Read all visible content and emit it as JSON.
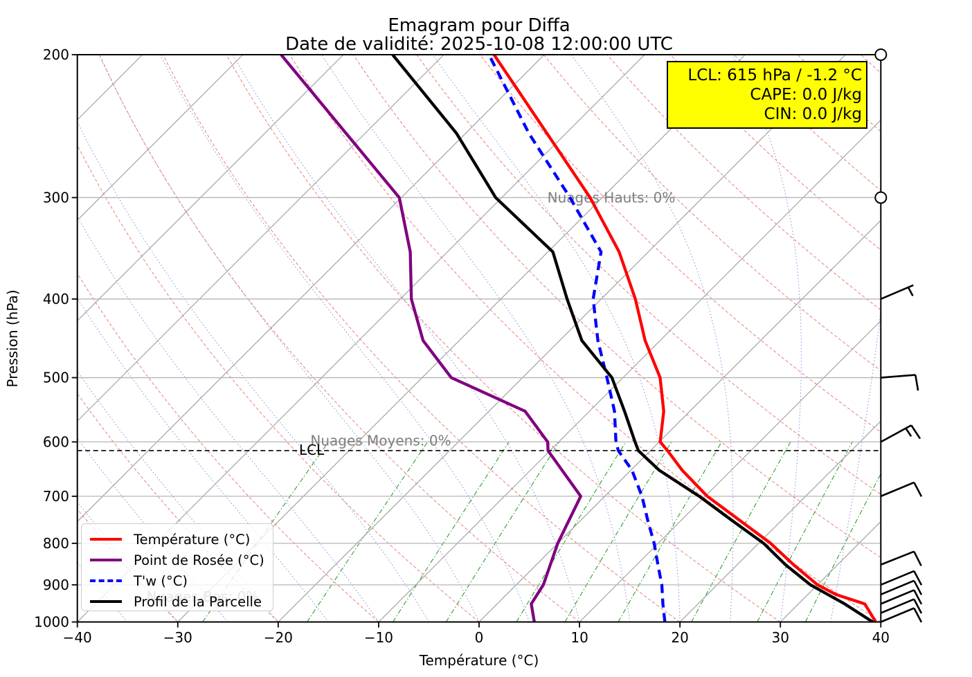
{
  "title": "Emagram pour Diffa",
  "subtitle": "Date de validité: 2025-10-08 12:00:00 UTC",
  "info_box": {
    "lcl_line": "LCL: 615 hPa / -1.2 °C",
    "cape_line": "CAPE: 0.0 J/kg",
    "cin_line": "CIN: 0.0 J/kg",
    "bg_color": "#ffff00"
  },
  "axes": {
    "xlabel": "Température (°C)",
    "ylabel": "Pression (hPa)",
    "x_tick_values": [
      -40,
      -30,
      -20,
      -10,
      0,
      10,
      20,
      30,
      40
    ],
    "y_tick_values": [
      200,
      300,
      400,
      500,
      600,
      700,
      800,
      900,
      1000
    ],
    "xlim": [
      -40,
      40
    ],
    "pressure_lim": [
      1000,
      200
    ],
    "y_scale": "log",
    "skew_deg": 45
  },
  "annotations": {
    "clouds_high": {
      "text": "Nuages Hauts: 0%",
      "pressure": 300
    },
    "clouds_mid": {
      "text": "Nuages Moyens: 0%",
      "pressure": 600
    },
    "clouds_low": {
      "text": "Nuages Bas: 0%",
      "pressure": 930
    },
    "lcl_label": "LCL",
    "lcl_pressure": 615
  },
  "legend": [
    {
      "label": "Température (°C)",
      "color": "#ff0000",
      "dash": "solid"
    },
    {
      "label": "Point de Rosée (°C)",
      "color": "#800080",
      "dash": "solid"
    },
    {
      "label": "T'w (°C)",
      "color": "#0000ff",
      "dash": "dashed"
    },
    {
      "label": "Profil de la Parcelle",
      "color": "#000000",
      "dash": "solid"
    }
  ],
  "chart_data": {
    "type": "line",
    "title": "Emagram pour Diffa",
    "xlabel": "Température (°C)",
    "ylabel": "Pression (hPa)",
    "xlim": [
      -40,
      40
    ],
    "pressure_levels_hpa": "log scale 1000 to 200",
    "series": [
      {
        "name": "Température (°C)",
        "color": "#ff0000",
        "style": "solid",
        "points": [
          [
            1000,
            39.5
          ],
          [
            950,
            36.6
          ],
          [
            925,
            32.8
          ],
          [
            900,
            30.0
          ],
          [
            850,
            25.6
          ],
          [
            800,
            21.2
          ],
          [
            700,
            10.2
          ],
          [
            650,
            5.1
          ],
          [
            615,
            1.7
          ],
          [
            600,
            0.1
          ],
          [
            550,
            -2.6
          ],
          [
            500,
            -6.3
          ],
          [
            450,
            -11.5
          ],
          [
            400,
            -16.6
          ],
          [
            350,
            -22.9
          ],
          [
            300,
            -31.2
          ],
          [
            250,
            -41.9
          ],
          [
            200,
            -55.0
          ]
        ]
      },
      {
        "name": "Point de Rosée (°C)",
        "color": "#800080",
        "style": "solid",
        "points": [
          [
            1000,
            5.5
          ],
          [
            950,
            3.4
          ],
          [
            900,
            2.7
          ],
          [
            800,
            0.0
          ],
          [
            700,
            -2.4
          ],
          [
            615,
            -10.2
          ],
          [
            600,
            -11.1
          ],
          [
            550,
            -16.4
          ],
          [
            500,
            -27.1
          ],
          [
            450,
            -33.6
          ],
          [
            400,
            -38.9
          ],
          [
            350,
            -43.7
          ],
          [
            300,
            -50.2
          ],
          [
            250,
            -61.9
          ],
          [
            200,
            -76.2
          ]
        ]
      },
      {
        "name": "T'w (°C)",
        "color": "#0000ff",
        "style": "dashed",
        "points": [
          [
            1000,
            18.5
          ],
          [
            950,
            16.5
          ],
          [
            900,
            14.5
          ],
          [
            850,
            12.1
          ],
          [
            800,
            9.6
          ],
          [
            750,
            6.7
          ],
          [
            700,
            3.7
          ],
          [
            650,
            0.1
          ],
          [
            615,
            -3.2
          ],
          [
            600,
            -4.3
          ],
          [
            550,
            -7.5
          ],
          [
            500,
            -11.6
          ],
          [
            450,
            -16.2
          ],
          [
            400,
            -20.8
          ],
          [
            350,
            -24.7
          ],
          [
            300,
            -33.2
          ],
          [
            250,
            -43.7
          ],
          [
            200,
            -55.5
          ]
        ]
      },
      {
        "name": "Profil de la Parcelle",
        "color": "#000000",
        "style": "solid",
        "points": [
          [
            1000,
            39.2
          ],
          [
            950,
            34.6
          ],
          [
            900,
            29.3
          ],
          [
            850,
            24.8
          ],
          [
            800,
            20.5
          ],
          [
            750,
            15.1
          ],
          [
            700,
            9.4
          ],
          [
            650,
            2.8
          ],
          [
            615,
            -1.2
          ],
          [
            600,
            -2.4
          ],
          [
            550,
            -6.5
          ],
          [
            500,
            -11.1
          ],
          [
            450,
            -17.8
          ],
          [
            400,
            -23.4
          ],
          [
            350,
            -29.5
          ],
          [
            300,
            -40.6
          ],
          [
            250,
            -50.9
          ],
          [
            200,
            -65.1
          ]
        ]
      }
    ]
  },
  "wind_barbs": [
    {
      "pressure": 200,
      "speed_kt": 0,
      "dx": 0,
      "dy": 0
    },
    {
      "pressure": 300,
      "speed_kt": 0,
      "dx": 0,
      "dy": 0
    },
    {
      "pressure": 400,
      "speed_kt": 5,
      "dx": 47,
      "dy": -20
    },
    {
      "pressure": 500,
      "speed_kt": 10,
      "dx": 50,
      "dy": -4
    },
    {
      "pressure": 600,
      "speed_kt": 15,
      "dx": 44,
      "dy": -24
    },
    {
      "pressure": 700,
      "speed_kt": 10,
      "dx": 48,
      "dy": -20
    },
    {
      "pressure": 850,
      "speed_kt": 10,
      "dx": 48,
      "dy": -19
    },
    {
      "pressure": 900,
      "speed_kt": 10,
      "dx": 48,
      "dy": -20
    },
    {
      "pressure": 925,
      "speed_kt": 10,
      "dx": 48,
      "dy": -20
    },
    {
      "pressure": 950,
      "speed_kt": 10,
      "dx": 48,
      "dy": -20
    },
    {
      "pressure": 975,
      "speed_kt": 10,
      "dx": 48,
      "dy": -20
    },
    {
      "pressure": 1000,
      "speed_kt": 10,
      "dx": 48,
      "dy": -20
    }
  ]
}
